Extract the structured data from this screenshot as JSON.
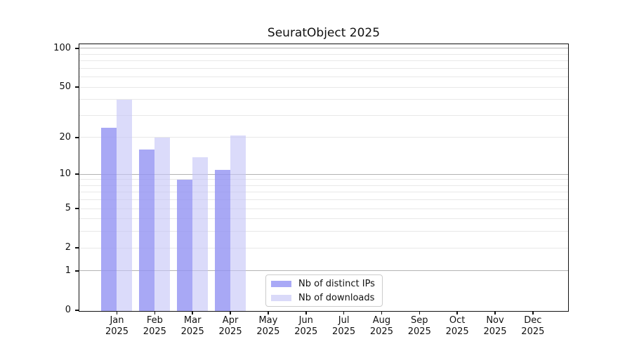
{
  "title": "SeuratObject 2025",
  "chart_data": {
    "type": "bar",
    "title": "SeuratObject 2025",
    "year": "2025",
    "categories": [
      "Jan",
      "Feb",
      "Mar",
      "Apr",
      "May",
      "Jun",
      "Jul",
      "Aug",
      "Sep",
      "Oct",
      "Nov",
      "Dec"
    ],
    "series": [
      {
        "name": "Nb of distinct IPs",
        "color": "#a9a9f6",
        "bar_color": "rgba(146,146,243,0.80)",
        "values": [
          24,
          16,
          9,
          11,
          null,
          null,
          null,
          null,
          null,
          null,
          null,
          null
        ]
      },
      {
        "name": "Nb of downloads",
        "color": "#dadaf9",
        "bar_color": "rgba(197,197,247,0.62)",
        "values": [
          40,
          20,
          14,
          21,
          null,
          null,
          null,
          null,
          null,
          null,
          null,
          null
        ]
      }
    ],
    "yticks": [
      0,
      1,
      2,
      5,
      10,
      20,
      50,
      100
    ],
    "ytick_labels": [
      "0",
      "1",
      "2",
      "5",
      "10",
      "20",
      "50",
      "100"
    ],
    "y_scale": "log10(1+x)",
    "ylim": [
      0,
      110
    ],
    "xlabel": "",
    "ylabel": "",
    "grid": "horizontal",
    "gridlines": {
      "major": [
        1,
        10,
        100
      ],
      "minor": [
        2,
        3,
        4,
        5,
        6,
        7,
        8,
        9,
        20,
        30,
        40,
        50,
        60,
        70,
        80,
        90
      ]
    },
    "legend_position": "inside-bottom-center"
  },
  "colors": {
    "axis": "#111111",
    "grid_major": "#b3b3b3",
    "grid_minor": "#e8e8e8",
    "background": "#ffffff"
  }
}
